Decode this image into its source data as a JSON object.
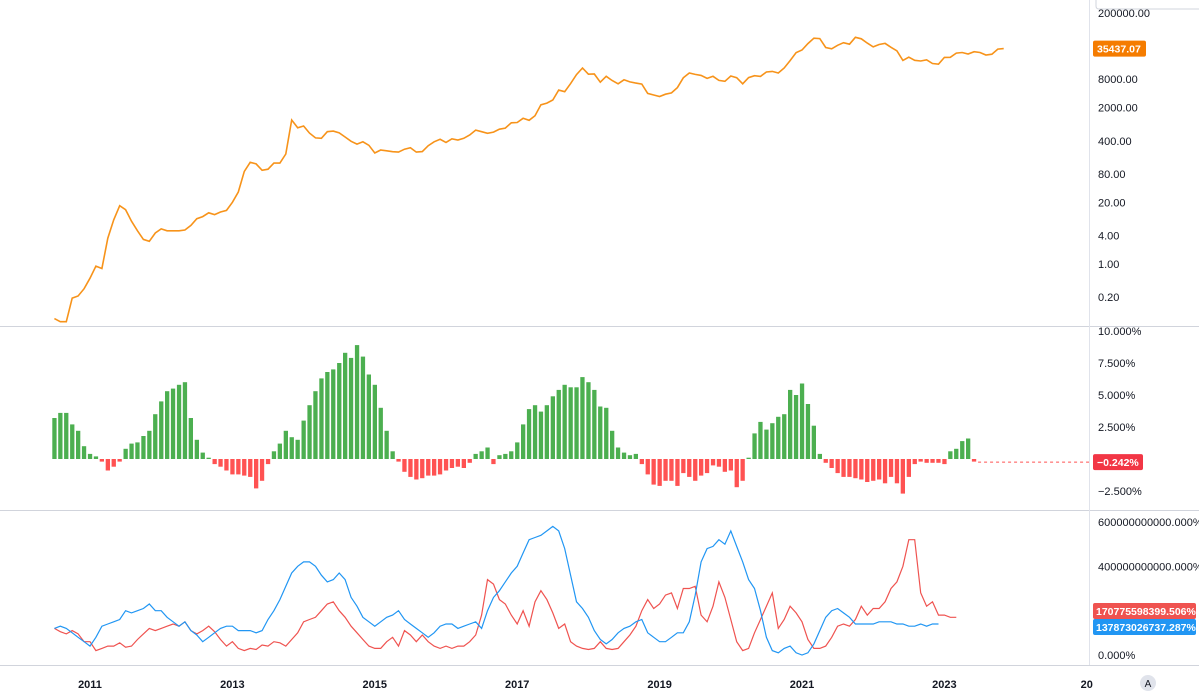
{
  "chart_data": [
    {
      "type": "line",
      "pane": "price",
      "scale": "log",
      "color": "#f7931a",
      "price_tag": "35437.07",
      "y_ticks": [
        "200000.00",
        "8000.00",
        "2000.00",
        "400.00",
        "80.00",
        "20.00",
        "4.00",
        "1.00",
        "0.20"
      ],
      "y_tick_values": [
        200000,
        8000,
        2000,
        400,
        80,
        20,
        4,
        1,
        0.2
      ],
      "points": [
        [
          "2010-07",
          0.07
        ],
        [
          "2010-08",
          0.06
        ],
        [
          "2010-09",
          0.06
        ],
        [
          "2010-10",
          0.19
        ],
        [
          "2010-11",
          0.21
        ],
        [
          "2010-12",
          0.3
        ],
        [
          "2011-01",
          0.5
        ],
        [
          "2011-02",
          0.9
        ],
        [
          "2011-03",
          0.8
        ],
        [
          "2011-04",
          3.5
        ],
        [
          "2011-05",
          8.5
        ],
        [
          "2011-06",
          17
        ],
        [
          "2011-07",
          14
        ],
        [
          "2011-08",
          8
        ],
        [
          "2011-09",
          5
        ],
        [
          "2011-10",
          3.3
        ],
        [
          "2011-11",
          3
        ],
        [
          "2011-12",
          4.5
        ],
        [
          "2012-01",
          5.5
        ],
        [
          "2012-02",
          5
        ],
        [
          "2012-03",
          5
        ],
        [
          "2012-04",
          5
        ],
        [
          "2012-05",
          5.2
        ],
        [
          "2012-06",
          6.5
        ],
        [
          "2012-07",
          9
        ],
        [
          "2012-08",
          10
        ],
        [
          "2012-09",
          12
        ],
        [
          "2012-10",
          11
        ],
        [
          "2012-11",
          12.5
        ],
        [
          "2012-12",
          13.5
        ],
        [
          "2013-01",
          20
        ],
        [
          "2013-02",
          33
        ],
        [
          "2013-03",
          90
        ],
        [
          "2013-04",
          140
        ],
        [
          "2013-05",
          130
        ],
        [
          "2013-06",
          95
        ],
        [
          "2013-07",
          100
        ],
        [
          "2013-08",
          135
        ],
        [
          "2013-09",
          135
        ],
        [
          "2013-10",
          210
        ],
        [
          "2013-11",
          1100
        ],
        [
          "2013-12",
          750
        ],
        [
          "2014-01",
          820
        ],
        [
          "2014-02",
          580
        ],
        [
          "2014-03",
          460
        ],
        [
          "2014-04",
          450
        ],
        [
          "2014-05",
          620
        ],
        [
          "2014-06",
          640
        ],
        [
          "2014-07",
          590
        ],
        [
          "2014-08",
          480
        ],
        [
          "2014-09",
          390
        ],
        [
          "2014-10",
          340
        ],
        [
          "2014-11",
          380
        ],
        [
          "2014-12",
          320
        ],
        [
          "2015-01",
          220
        ],
        [
          "2015-02",
          255
        ],
        [
          "2015-03",
          245
        ],
        [
          "2015-04",
          235
        ],
        [
          "2015-05",
          230
        ],
        [
          "2015-06",
          265
        ],
        [
          "2015-07",
          285
        ],
        [
          "2015-08",
          230
        ],
        [
          "2015-09",
          236
        ],
        [
          "2015-10",
          315
        ],
        [
          "2015-11",
          380
        ],
        [
          "2015-12",
          430
        ],
        [
          "2016-01",
          370
        ],
        [
          "2016-02",
          440
        ],
        [
          "2016-03",
          415
        ],
        [
          "2016-04",
          450
        ],
        [
          "2016-05",
          530
        ],
        [
          "2016-06",
          670
        ],
        [
          "2016-07",
          620
        ],
        [
          "2016-08",
          575
        ],
        [
          "2016-09",
          610
        ],
        [
          "2016-10",
          700
        ],
        [
          "2016-11",
          740
        ],
        [
          "2016-12",
          960
        ],
        [
          "2017-01",
          970
        ],
        [
          "2017-02",
          1190
        ],
        [
          "2017-03",
          1080
        ],
        [
          "2017-04",
          1350
        ],
        [
          "2017-05",
          2300
        ],
        [
          "2017-06",
          2500
        ],
        [
          "2017-07",
          2900
        ],
        [
          "2017-08",
          4700
        ],
        [
          "2017-09",
          4350
        ],
        [
          "2017-10",
          6450
        ],
        [
          "2017-11",
          10000
        ],
        [
          "2017-12",
          13800
        ],
        [
          "2018-01",
          10200
        ],
        [
          "2018-02",
          10300
        ],
        [
          "2018-03",
          6900
        ],
        [
          "2018-04",
          9200
        ],
        [
          "2018-05",
          7500
        ],
        [
          "2018-06",
          6400
        ],
        [
          "2018-07",
          7750
        ],
        [
          "2018-08",
          7000
        ],
        [
          "2018-09",
          6600
        ],
        [
          "2018-10",
          6300
        ],
        [
          "2018-11",
          4000
        ],
        [
          "2018-12",
          3700
        ],
        [
          "2019-01",
          3450
        ],
        [
          "2019-02",
          3850
        ],
        [
          "2019-03",
          4100
        ],
        [
          "2019-04",
          5300
        ],
        [
          "2019-05",
          8550
        ],
        [
          "2019-06",
          10800
        ],
        [
          "2019-07",
          10100
        ],
        [
          "2019-08",
          9600
        ],
        [
          "2019-09",
          8300
        ],
        [
          "2019-10",
          9200
        ],
        [
          "2019-11",
          7550
        ],
        [
          "2019-12",
          7200
        ],
        [
          "2020-01",
          9350
        ],
        [
          "2020-02",
          8600
        ],
        [
          "2020-03",
          6400
        ],
        [
          "2020-04",
          8650
        ],
        [
          "2020-05",
          9450
        ],
        [
          "2020-06",
          9150
        ],
        [
          "2020-07",
          11350
        ],
        [
          "2020-08",
          11650
        ],
        [
          "2020-09",
          10780
        ],
        [
          "2020-10",
          13800
        ],
        [
          "2020-11",
          19700
        ],
        [
          "2020-12",
          29000
        ],
        [
          "2021-01",
          33100
        ],
        [
          "2021-02",
          45200
        ],
        [
          "2021-03",
          58800
        ],
        [
          "2021-04",
          57700
        ],
        [
          "2021-05",
          37300
        ],
        [
          "2021-06",
          35000
        ],
        [
          "2021-07",
          41500
        ],
        [
          "2021-08",
          47100
        ],
        [
          "2021-09",
          43800
        ],
        [
          "2021-10",
          61300
        ],
        [
          "2021-11",
          57000
        ],
        [
          "2021-12",
          46300
        ],
        [
          "2022-01",
          38500
        ],
        [
          "2022-02",
          43200
        ],
        [
          "2022-03",
          45500
        ],
        [
          "2022-04",
          37700
        ],
        [
          "2022-05",
          31800
        ],
        [
          "2022-06",
          19900
        ],
        [
          "2022-07",
          23300
        ],
        [
          "2022-08",
          20050
        ],
        [
          "2022-09",
          19400
        ],
        [
          "2022-10",
          20500
        ],
        [
          "2022-11",
          17150
        ],
        [
          "2022-12",
          16550
        ],
        [
          "2023-01",
          23100
        ],
        [
          "2023-02",
          23150
        ],
        [
          "2023-03",
          28450
        ],
        [
          "2023-04",
          29250
        ],
        [
          "2023-05",
          27200
        ],
        [
          "2023-06",
          30450
        ],
        [
          "2023-07",
          29250
        ],
        [
          "2023-08",
          25950
        ],
        [
          "2023-09",
          26950
        ],
        [
          "2023-10",
          34500
        ],
        [
          "2023-11",
          35437
        ]
      ]
    },
    {
      "type": "bar",
      "pane": "histogram",
      "y_ticks": [
        "10.000%",
        "7.500%",
        "5.000%",
        "2.500%",
        "−2.500%"
      ],
      "y_tick_values": [
        10,
        7.5,
        5,
        2.5,
        -2.5
      ],
      "ylim": [
        -3.0,
        10.0
      ],
      "positive_color": "#4caf50",
      "negative_color": "#ff5252",
      "value_tag": "−0.242%",
      "last_value": -0.242,
      "start": "2010-07",
      "values": [
        3.2,
        3.6,
        3.6,
        2.7,
        2.2,
        1.0,
        0.4,
        0.2,
        -0.2,
        -0.9,
        -0.6,
        -0.2,
        0.8,
        1.2,
        1.3,
        1.8,
        2.2,
        3.5,
        4.5,
        5.3,
        5.5,
        5.8,
        6.0,
        3.2,
        1.5,
        0.5,
        0.1,
        -0.4,
        -0.6,
        -0.9,
        -1.2,
        -1.2,
        -1.3,
        -1.4,
        -2.3,
        -1.7,
        -0.4,
        0.6,
        1.2,
        2.2,
        1.7,
        1.5,
        3.0,
        4.2,
        5.3,
        6.3,
        6.8,
        7.0,
        7.5,
        8.3,
        7.9,
        8.9,
        8.0,
        6.6,
        5.8,
        4.0,
        2.2,
        0.6,
        -0.2,
        -1.0,
        -1.4,
        -1.6,
        -1.5,
        -1.3,
        -1.3,
        -1.2,
        -0.9,
        -0.7,
        -0.6,
        -0.7,
        -0.3,
        0.4,
        0.6,
        0.9,
        -0.4,
        0.3,
        0.4,
        0.6,
        1.3,
        2.7,
        3.9,
        4.2,
        3.7,
        4.2,
        4.9,
        5.4,
        5.8,
        5.6,
        5.6,
        6.4,
        6.0,
        5.4,
        4.1,
        4.0,
        2.2,
        0.9,
        0.5,
        0.3,
        0.4,
        -0.4,
        -1.2,
        -2.0,
        -2.1,
        -1.7,
        -1.7,
        -2.1,
        -1.1,
        -1.4,
        -1.7,
        -1.3,
        -1.1,
        -0.5,
        -0.6,
        -1.0,
        -0.9,
        -2.2,
        -1.7,
        0.1,
        2.0,
        2.9,
        2.3,
        2.8,
        3.3,
        3.5,
        5.4,
        5.0,
        5.9,
        4.3,
        2.6,
        0.4,
        -0.3,
        -0.7,
        -1.1,
        -1.4,
        -1.4,
        -1.5,
        -1.6,
        -1.8,
        -1.7,
        -1.6,
        -1.9,
        -1.4,
        -1.9,
        -2.7,
        -1.4,
        -0.4,
        -0.2,
        -0.3,
        -0.3,
        -0.3,
        -0.4,
        0.6,
        0.8,
        1.4,
        1.6,
        -0.2
      ]
    },
    {
      "type": "line",
      "pane": "oscillator",
      "y_ticks": [
        "600000000000.000%",
        "400000000000.000%",
        "0.000%"
      ],
      "y_tick_values": [
        600000000000,
        400000000000,
        0
      ],
      "ylim": [
        -20000000000,
        620000000000
      ],
      "series": [
        {
          "color": "#ef5350",
          "tag": "170775598399.506%",
          "start": "2010-07",
          "values": [
            120,
            105,
            95,
            110,
            95,
            60,
            60,
            20,
            30,
            40,
            40,
            55,
            35,
            40,
            70,
            95,
            120,
            110,
            120,
            130,
            140,
            130,
            150,
            110,
            95,
            110,
            130,
            105,
            70,
            40,
            60,
            30,
            20,
            30,
            25,
            45,
            40,
            60,
            55,
            40,
            70,
            100,
            150,
            160,
            170,
            200,
            230,
            240,
            200,
            170,
            130,
            100,
            70,
            40,
            30,
            30,
            60,
            80,
            40,
            110,
            90,
            60,
            90,
            60,
            40,
            30,
            40,
            30,
            40,
            40,
            60,
            90,
            180,
            340,
            320,
            250,
            230,
            180,
            140,
            200,
            130,
            240,
            290,
            250,
            190,
            120,
            140,
            60,
            40,
            30,
            25,
            30,
            60,
            30,
            25,
            30,
            60,
            90,
            130,
            200,
            250,
            210,
            230,
            270,
            280,
            210,
            300,
            300,
            310,
            180,
            150,
            220,
            330,
            260,
            160,
            60,
            20,
            30,
            100,
            160,
            220,
            280,
            120,
            160,
            220,
            190,
            150,
            70,
            30,
            30,
            40,
            80,
            130,
            140,
            130,
            160,
            220,
            180,
            210,
            210,
            240,
            300,
            330,
            400,
            520,
            520,
            280,
            220,
            240,
            180,
            180,
            170,
            170
          ]
        },
        {
          "color": "#2196f3",
          "tag": "137873026737.287%",
          "start": "2010-07",
          "values": [
            120,
            130,
            120,
            100,
            80,
            60,
            40,
            80,
            130,
            140,
            150,
            160,
            200,
            190,
            200,
            210,
            230,
            200,
            200,
            170,
            150,
            130,
            150,
            110,
            90,
            60,
            80,
            100,
            120,
            130,
            130,
            110,
            110,
            110,
            100,
            110,
            160,
            200,
            250,
            310,
            370,
            400,
            420,
            420,
            400,
            360,
            330,
            340,
            370,
            340,
            260,
            220,
            170,
            150,
            130,
            150,
            170,
            180,
            200,
            160,
            140,
            120,
            100,
            80,
            100,
            130,
            140,
            140,
            120,
            130,
            140,
            150,
            120,
            200,
            260,
            290,
            330,
            370,
            400,
            460,
            520,
            530,
            540,
            560,
            580,
            560,
            480,
            360,
            240,
            210,
            170,
            110,
            70,
            50,
            70,
            100,
            120,
            130,
            150,
            160,
            100,
            80,
            60,
            60,
            80,
            100,
            100,
            150,
            270,
            420,
            480,
            490,
            520,
            500,
            560,
            490,
            420,
            340,
            300,
            200,
            80,
            20,
            10,
            30,
            40,
            10,
            0,
            10,
            50,
            110,
            170,
            200,
            210,
            190,
            170,
            140,
            140,
            140,
            140,
            150,
            150,
            150,
            140,
            140,
            130,
            130,
            140,
            130,
            140,
            140
          ]
        }
      ],
      "values_scale_note": "values above in units of 1e9 %"
    }
  ],
  "time_axis": {
    "labels": [
      "2011",
      "2013",
      "2015",
      "2017",
      "2019",
      "2021",
      "2023",
      "20"
    ],
    "auto_button": "A"
  }
}
